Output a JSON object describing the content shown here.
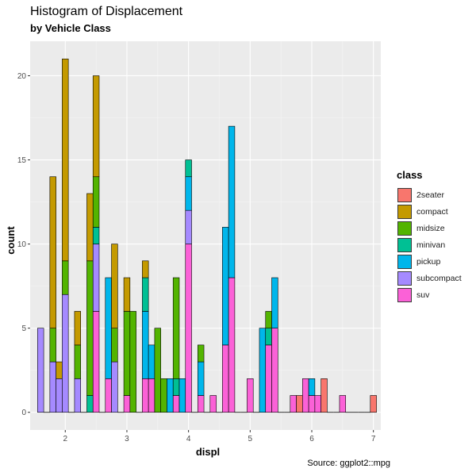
{
  "chart_data": {
    "type": "bar",
    "title": "Histogram of Displacement",
    "subtitle": "by Vehicle Class",
    "caption": "Source: ggplot2::mpg",
    "xlabel": "displ",
    "ylabel": "count",
    "xlim": [
      1.43,
      7.12
    ],
    "ylim": [
      -1.05,
      22.05
    ],
    "x_ticks": [
      2,
      3,
      4,
      5,
      6,
      7
    ],
    "y_ticks": [
      0,
      5,
      10,
      15,
      20
    ],
    "bin_width": 0.1,
    "legend_title": "class",
    "legend_position": "right",
    "series": [
      {
        "name": "2seater",
        "color": "#F8766D"
      },
      {
        "name": "compact",
        "color": "#C49A00"
      },
      {
        "name": "midsize",
        "color": "#53B400"
      },
      {
        "name": "minivan",
        "color": "#00C094"
      },
      {
        "name": "pickup",
        "color": "#00B6EB"
      },
      {
        "name": "subcompact",
        "color": "#A58AFF"
      },
      {
        "name": "suv",
        "color": "#FB61D7"
      }
    ],
    "bins": [
      {
        "x": 1.6,
        "counts": {
          "subcompact": 5
        }
      },
      {
        "x": 1.8,
        "counts": {
          "subcompact": 3,
          "midsize": 2,
          "compact": 9
        }
      },
      {
        "x": 1.9,
        "counts": {
          "subcompact": 2,
          "compact": 1
        }
      },
      {
        "x": 2.0,
        "counts": {
          "subcompact": 7,
          "midsize": 2,
          "compact": 12
        }
      },
      {
        "x": 2.2,
        "counts": {
          "subcompact": 2,
          "midsize": 2,
          "compact": 2
        }
      },
      {
        "x": 2.4,
        "counts": {
          "minivan": 1,
          "midsize": 8,
          "compact": 4
        }
      },
      {
        "x": 2.5,
        "counts": {
          "suv": 6,
          "subcompact": 4,
          "midsize": 3,
          "minivan": 1,
          "compact": 6
        }
      },
      {
        "x": 2.7,
        "counts": {
          "suv": 2,
          "pickup": 6
        }
      },
      {
        "x": 2.8,
        "counts": {
          "midsize": 2,
          "subcompact": 3,
          "compact": 5
        }
      },
      {
        "x": 3.0,
        "counts": {
          "suv": 1,
          "midsize": 5,
          "compact": 2
        }
      },
      {
        "x": 3.1,
        "counts": {
          "midsize": 6
        }
      },
      {
        "x": 3.3,
        "counts": {
          "suv": 2,
          "minivan": 2,
          "pickup": 4,
          "compact": 1
        }
      },
      {
        "x": 3.4,
        "counts": {
          "suv": 2,
          "pickup": 2
        }
      },
      {
        "x": 3.5,
        "counts": {
          "midsize": 5
        }
      },
      {
        "x": 3.6,
        "counts": {
          "midsize": 2
        }
      },
      {
        "x": 3.7,
        "counts": {
          "pickup": 2
        }
      },
      {
        "x": 3.8,
        "counts": {
          "suv": 1,
          "minivan": 1,
          "midsize": 6
        }
      },
      {
        "x": 3.9,
        "counts": {
          "pickup": 2
        }
      },
      {
        "x": 4.0,
        "counts": {
          "suv": 10,
          "subcompact": 2,
          "pickup": 2,
          "minivan": 1
        }
      },
      {
        "x": 4.2,
        "counts": {
          "suv": 1,
          "pickup": 2,
          "midsize": 1
        }
      },
      {
        "x": 4.4,
        "counts": {
          "suv": 1
        }
      },
      {
        "x": 4.6,
        "counts": {
          "suv": 4,
          "pickup": 7
        }
      },
      {
        "x": 4.7,
        "counts": {
          "suv": 8,
          "pickup": 9
        }
      },
      {
        "x": 5.0,
        "counts": {
          "suv": 2
        }
      },
      {
        "x": 5.2,
        "counts": {
          "pickup": 5
        }
      },
      {
        "x": 5.3,
        "counts": {
          "suv": 4,
          "minivan": 1,
          "midsize": 1
        }
      },
      {
        "x": 5.4,
        "counts": {
          "suv": 5,
          "pickup": 3
        }
      },
      {
        "x": 5.7,
        "counts": {
          "suv": 1
        }
      },
      {
        "x": 5.8,
        "counts": {
          "2seater": 1
        }
      },
      {
        "x": 5.9,
        "counts": {
          "suv": 2
        }
      },
      {
        "x": 6.0,
        "counts": {
          "suv": 1,
          "pickup": 1
        }
      },
      {
        "x": 6.1,
        "counts": {
          "suv": 1
        }
      },
      {
        "x": 6.2,
        "counts": {
          "2seater": 2
        }
      },
      {
        "x": 6.5,
        "counts": {
          "suv": 1
        }
      },
      {
        "x": 7.0,
        "counts": {
          "2seater": 1
        }
      }
    ]
  }
}
